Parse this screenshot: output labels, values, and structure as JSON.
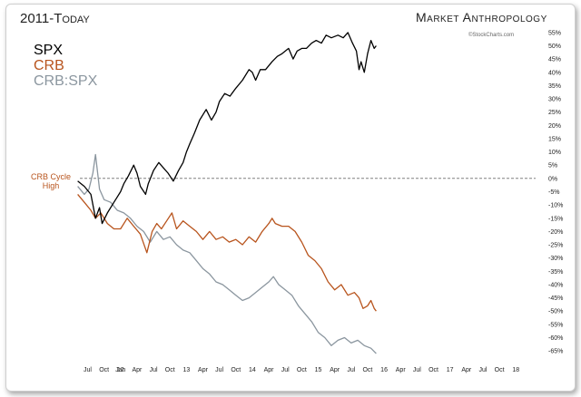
{
  "chart_data": {
    "type": "line",
    "title": "2011-Today",
    "brand": "Market Anthropology",
    "credit": "©StockCharts.com",
    "annotation": "CRB Cycle High",
    "annotation_lines": [
      "CRB Cycle",
      "High"
    ],
    "ylim": [
      -67,
      57
    ],
    "y_ticks": [
      "55%",
      "50%",
      "45%",
      "40%",
      "35%",
      "30%",
      "25%",
      "20%",
      "15%",
      "10%",
      "5%",
      "0%",
      "-5%",
      "-10%",
      "-15%",
      "-20%",
      "-25%",
      "-30%",
      "-35%",
      "-40%",
      "-45%",
      "-50%",
      "-55%",
      "-60%",
      "-65%"
    ],
    "y_tick_values": [
      55,
      50,
      45,
      40,
      35,
      30,
      25,
      20,
      15,
      10,
      5,
      0,
      -5,
      -10,
      -15,
      -20,
      -25,
      -30,
      -35,
      -40,
      -45,
      -50,
      -55,
      -60,
      -65
    ],
    "x_ticks": [
      "Jul",
      "Oct",
      "12",
      "Jan",
      "Apr",
      "Jul",
      "Oct",
      "13",
      "Apr",
      "Jul",
      "Oct",
      "14",
      "Apr",
      "Jul",
      "Oct",
      "15",
      "Apr",
      "Jul",
      "Oct",
      "16",
      "Apr",
      "Jul",
      "Oct",
      "17",
      "Apr",
      "Jul",
      "Oct",
      "18"
    ],
    "x_tick_values": [
      2011.5,
      2011.75,
      2012.0,
      2012.0,
      2012.25,
      2012.5,
      2012.75,
      2013.0,
      2013.25,
      2013.5,
      2013.75,
      2014.0,
      2014.25,
      2014.5,
      2014.75,
      2015.0,
      2015.25,
      2015.5,
      2015.75,
      2016.0,
      2016.25,
      2016.5,
      2016.75,
      2017.0,
      2017.25,
      2017.5,
      2017.75,
      2018.0
    ],
    "xlim": [
      2011.3,
      2018.3
    ],
    "reference_line": 0,
    "series": [
      {
        "name": "SPX",
        "color": "#000000",
        "x": [
          2011.35,
          2011.45,
          2011.55,
          2011.62,
          2011.68,
          2011.72,
          2011.8,
          2011.9,
          2012.0,
          2012.05,
          2012.12,
          2012.2,
          2012.25,
          2012.3,
          2012.38,
          2012.42,
          2012.5,
          2012.58,
          2012.65,
          2012.72,
          2012.8,
          2012.88,
          2012.95,
          2013.0,
          2013.05,
          2013.12,
          2013.2,
          2013.3,
          2013.38,
          2013.45,
          2013.5,
          2013.58,
          2013.66,
          2013.75,
          2013.85,
          2013.95,
          2014.0,
          2014.05,
          2014.12,
          2014.2,
          2014.3,
          2014.38,
          2014.45,
          2014.55,
          2014.62,
          2014.68,
          2014.75,
          2014.82,
          2014.9,
          2014.97,
          2015.05,
          2015.12,
          2015.2,
          2015.3,
          2015.38,
          2015.45,
          2015.52,
          2015.58,
          2015.62,
          2015.65,
          2015.7,
          2015.75,
          2015.8,
          2015.85,
          2015.88
        ],
        "values": [
          -1,
          -3,
          -6,
          -15,
          -11,
          -17,
          -13,
          -9,
          -5,
          -2,
          1,
          5,
          2,
          -3,
          -6,
          -2,
          3,
          6,
          4,
          2,
          -1,
          3,
          6,
          10,
          13,
          17,
          22,
          26,
          22,
          25,
          29,
          32,
          31,
          34,
          37,
          41,
          40,
          37,
          41,
          41,
          44,
          46,
          47,
          49,
          45,
          48,
          49,
          49,
          51,
          52,
          51,
          54,
          53,
          54,
          53,
          55,
          51,
          48,
          41,
          44,
          40,
          47,
          52,
          49,
          50
        ]
      },
      {
        "name": "CRB",
        "color": "#b8541d",
        "x": [
          2011.35,
          2011.45,
          2011.55,
          2011.62,
          2011.7,
          2011.8,
          2011.9,
          2012.0,
          2012.1,
          2012.2,
          2012.3,
          2012.4,
          2012.48,
          2012.55,
          2012.62,
          2012.7,
          2012.78,
          2012.85,
          2012.95,
          2013.05,
          2013.15,
          2013.25,
          2013.35,
          2013.45,
          2013.55,
          2013.65,
          2013.75,
          2013.85,
          2013.95,
          2014.05,
          2014.15,
          2014.25,
          2014.3,
          2014.35,
          2014.45,
          2014.55,
          2014.65,
          2014.75,
          2014.85,
          2014.95,
          2015.05,
          2015.15,
          2015.25,
          2015.35,
          2015.45,
          2015.55,
          2015.62,
          2015.68,
          2015.75,
          2015.8,
          2015.85,
          2015.88
        ],
        "values": [
          -6,
          -9,
          -12,
          -15,
          -13,
          -17,
          -19,
          -19,
          -15,
          -18,
          -21,
          -28,
          -20,
          -17,
          -19,
          -16,
          -13,
          -19,
          -16,
          -18,
          -20,
          -23,
          -20,
          -23,
          -22,
          -24,
          -23,
          -25,
          -22,
          -24,
          -20,
          -17,
          -15,
          -17,
          -18,
          -18,
          -20,
          -24,
          -29,
          -31,
          -34,
          -39,
          -42,
          -40,
          -44,
          -43,
          -45,
          -49,
          -48,
          -46,
          -49,
          -50
        ]
      },
      {
        "name": "CRB:SPX",
        "color": "#8b969f",
        "x": [
          2011.35,
          2011.45,
          2011.52,
          2011.58,
          2011.62,
          2011.68,
          2011.75,
          2011.85,
          2011.95,
          2012.05,
          2012.15,
          2012.25,
          2012.35,
          2012.45,
          2012.55,
          2012.65,
          2012.75,
          2012.85,
          2012.95,
          2013.05,
          2013.15,
          2013.25,
          2013.35,
          2013.45,
          2013.55,
          2013.65,
          2013.75,
          2013.85,
          2013.95,
          2014.05,
          2014.15,
          2014.25,
          2014.32,
          2014.4,
          2014.5,
          2014.6,
          2014.7,
          2014.8,
          2014.9,
          2015.0,
          2015.1,
          2015.2,
          2015.3,
          2015.4,
          2015.5,
          2015.6,
          2015.7,
          2015.8,
          2015.88
        ],
        "values": [
          -3,
          -6,
          -4,
          2,
          9,
          -4,
          -8,
          -9,
          -12,
          -13,
          -15,
          -18,
          -20,
          -24,
          -20,
          -23,
          -22,
          -25,
          -27,
          -28,
          -31,
          -34,
          -36,
          -39,
          -40,
          -42,
          -44,
          -46,
          -45,
          -43,
          -41,
          -39,
          -37,
          -40,
          -42,
          -44,
          -48,
          -51,
          -54,
          -58,
          -60,
          -63,
          -61,
          -60,
          -62,
          -61,
          -63,
          -64,
          -66
        ]
      }
    ]
  }
}
